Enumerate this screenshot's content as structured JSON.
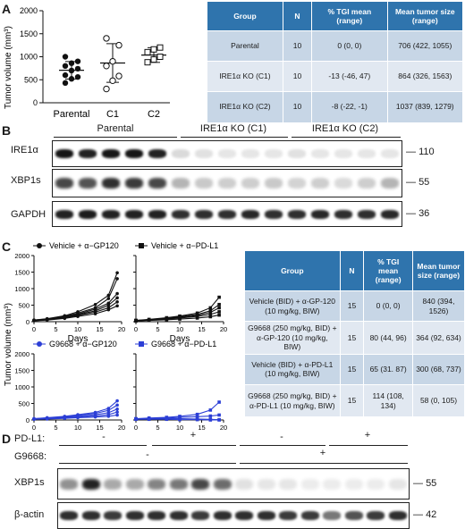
{
  "panels": {
    "a": "A",
    "b": "B",
    "c": "C",
    "d": "D"
  },
  "panelA": {
    "ylabel": "Tumor volume (mm³)",
    "chart_data": {
      "type": "scatter",
      "categories": [
        "Parental",
        "C1",
        "C2"
      ],
      "yticks": [
        "0",
        "500",
        "1000",
        "1500",
        "2000"
      ],
      "ylim": [
        0,
        2000
      ],
      "series": [
        {
          "values": [
            430,
            520,
            560,
            600,
            700,
            740,
            800,
            860,
            900,
            1000
          ],
          "mean": 706,
          "sd": 190
        },
        {
          "values": [
            300,
            480,
            580,
            800,
            900,
            1250,
            1400
          ],
          "mean": 864,
          "sd": 420
        },
        {
          "values": [
            880,
            940,
            1000,
            1100,
            1160,
            1200
          ],
          "mean": 1037,
          "sd": 160
        }
      ]
    },
    "table": {
      "headers": [
        "Group",
        "N",
        "% TGI mean (range)",
        "Mean tumor size (range)"
      ],
      "rows": [
        [
          "Parental",
          "10",
          "0 (0, 0)",
          "706 (422, 1055)"
        ],
        [
          "IRE1α KO (C1)",
          "10",
          "-13 (-46, 47)",
          "864 (326, 1563)"
        ],
        [
          "IRE1α KO (C2)",
          "10",
          "-8 (-22, -1)",
          "1037 (839, 1279)"
        ]
      ]
    }
  },
  "panelB": {
    "groups": [
      "Parental",
      "IRE1α KO (C1)",
      "IRE1α KO (C2)"
    ],
    "proteins": [
      "IRE1α",
      "XBP1s",
      "GAPDH"
    ],
    "mw": [
      "110",
      "55",
      "36"
    ]
  },
  "panelC": {
    "ylabel": "Tumor volume (mm³)",
    "xlabel": "Days",
    "yticks": [
      "0",
      "500",
      "1000",
      "1500",
      "2000"
    ],
    "xticks": [
      "0",
      "5",
      "10",
      "15",
      "20"
    ],
    "chart_data": [
      {
        "type": "line",
        "title": "Vehicle + α−GP120",
        "series": [
          {
            "x": [
              0,
              3,
              7,
              10,
              14,
              17,
              19
            ],
            "y": [
              50,
              90,
              180,
              300,
              520,
              800,
              1480
            ]
          },
          {
            "x": [
              0,
              3,
              7,
              10,
              14,
              17,
              19
            ],
            "y": [
              50,
              80,
              160,
              260,
              420,
              700,
              1300
            ]
          },
          {
            "x": [
              0,
              3,
              7,
              10,
              14,
              17,
              19
            ],
            "y": [
              40,
              70,
              140,
              230,
              380,
              560,
              850
            ]
          },
          {
            "x": [
              0,
              3,
              7,
              10,
              14,
              17,
              19
            ],
            "y": [
              40,
              70,
              130,
              210,
              330,
              500,
              720
            ]
          },
          {
            "x": [
              0,
              3,
              7,
              10,
              14,
              17,
              19
            ],
            "y": [
              30,
              60,
              120,
              190,
              290,
              420,
              600
            ]
          },
          {
            "x": [
              0,
              3,
              7,
              10,
              14,
              17,
              19
            ],
            "y": [
              30,
              50,
              100,
              160,
              240,
              360,
              480
            ]
          }
        ]
      },
      {
        "type": "line",
        "title": "Vehicle + α−PD-L1",
        "series": [
          {
            "x": [
              0,
              3,
              7,
              10,
              14,
              17,
              19
            ],
            "y": [
              40,
              70,
              120,
              170,
              260,
              420,
              740
            ]
          },
          {
            "x": [
              0,
              3,
              7,
              10,
              14,
              17,
              19
            ],
            "y": [
              40,
              60,
              100,
              150,
              220,
              330,
              520
            ]
          },
          {
            "x": [
              0,
              3,
              7,
              10,
              14,
              17,
              19
            ],
            "y": [
              30,
              50,
              90,
              130,
              190,
              280,
              420
            ]
          },
          {
            "x": [
              0,
              3,
              7,
              10,
              14,
              17,
              19
            ],
            "y": [
              30,
              50,
              80,
              110,
              160,
              220,
              300
            ]
          },
          {
            "x": [
              0,
              3,
              7,
              10,
              14,
              17,
              19
            ],
            "y": [
              20,
              40,
              60,
              80,
              110,
              150,
              200
            ]
          }
        ]
      },
      {
        "type": "line",
        "title": "G9668 + α−GP120",
        "series": [
          {
            "x": [
              0,
              3,
              7,
              10,
              14,
              17,
              19
            ],
            "y": [
              40,
              70,
              110,
              160,
              230,
              350,
              580
            ]
          },
          {
            "x": [
              0,
              3,
              7,
              10,
              14,
              17,
              19
            ],
            "y": [
              40,
              60,
              100,
              140,
              200,
              290,
              450
            ]
          },
          {
            "x": [
              0,
              3,
              7,
              10,
              14,
              17,
              19
            ],
            "y": [
              30,
              50,
              80,
              110,
              160,
              220,
              330
            ]
          },
          {
            "x": [
              0,
              3,
              7,
              10,
              14,
              17,
              19
            ],
            "y": [
              30,
              40,
              60,
              90,
              120,
              160,
              240
            ]
          },
          {
            "x": [
              0,
              3,
              7,
              10,
              14,
              17,
              19
            ],
            "y": [
              20,
              30,
              50,
              70,
              90,
              110,
              150
            ]
          }
        ]
      },
      {
        "type": "line",
        "title": "G9668 + α−PD-L1",
        "series": [
          {
            "x": [
              0,
              3,
              7,
              10,
              14,
              17,
              19
            ],
            "y": [
              40,
              60,
              80,
              110,
              170,
              300,
              540
            ]
          },
          {
            "x": [
              0,
              3,
              7,
              10,
              14,
              17,
              19
            ],
            "y": [
              30,
              40,
              60,
              80,
              100,
              120,
              150
            ]
          },
          {
            "x": [
              0,
              3,
              7,
              10,
              14,
              17,
              19
            ],
            "y": [
              30,
              30,
              40,
              40,
              30,
              20,
              10
            ]
          },
          {
            "x": [
              0,
              3,
              7,
              10,
              14,
              17,
              19
            ],
            "y": [
              20,
              20,
              20,
              10,
              10,
              0,
              0
            ]
          }
        ]
      }
    ],
    "table": {
      "headers": [
        "Group",
        "N",
        "% TGI mean (range)",
        "Mean tumor size (range)"
      ],
      "rows": [
        [
          "Vehicle (BID) + α-GP-120 (10 mg/kg, BIW)",
          "15",
          "0 (0, 0)",
          "840 (394, 1526)"
        ],
        [
          "G9668 (250 mg/kg, BID) + α-GP-120 (10 mg/kg, BIW)",
          "15",
          "80 (44, 96)",
          "364 (92, 634)"
        ],
        [
          "Vehicle (BID) + α-PD-L1 (10 mg/kg, BIW)",
          "15",
          "65 (31. 87)",
          "300 (68, 737)"
        ],
        [
          "G9668 (250 mg/kg, BID) + α-PD-L1 (10 mg/kg, BIW)",
          "15",
          "114 (108, 134)",
          "58 (0, 105)"
        ]
      ]
    }
  },
  "panelD": {
    "pdl1_label": "PD-L1:",
    "g9668_label": "G9668:",
    "pdl1_signs": [
      "-",
      "+",
      "-",
      "+"
    ],
    "g9668_signs": [
      "-",
      "+"
    ],
    "proteins": [
      "XBP1s",
      "β-actin"
    ],
    "mw": [
      "55",
      "42"
    ]
  },
  "colors": {
    "black": "#111111",
    "blue": "#2c3fd6",
    "table_header": "#2f74ad"
  }
}
